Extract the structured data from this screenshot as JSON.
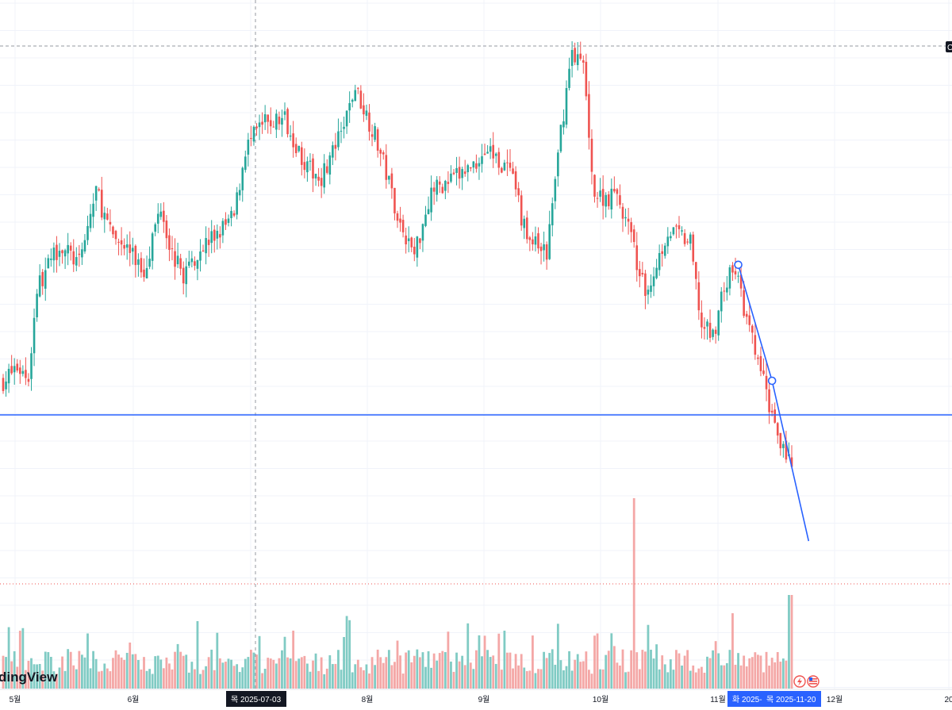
{
  "watermark": "dingView",
  "chart_data": {
    "type": "candlestick",
    "x_axis_labels": [
      {
        "label": "5월",
        "month_index": 0
      },
      {
        "label": "6월",
        "month_index": 1
      },
      {
        "label": "8월",
        "month_index": 3
      },
      {
        "label": "9월",
        "month_index": 4
      },
      {
        "label": "10월",
        "month_index": 5
      },
      {
        "label": "11월",
        "month_index": 6
      },
      {
        "label": "12월",
        "month_index": 7
      },
      {
        "label": "20",
        "month_index": 8
      }
    ],
    "crosshair_date": "목 2025-07-03",
    "range_tag": {
      "start": "화 2025-",
      "end": "목 2025-11-20"
    },
    "y_axis_marker": "C",
    "colors": {
      "up": "#26a69a",
      "down": "#ef5350",
      "vol_up": "#80cbc4",
      "vol_down": "#f4a7a6",
      "line": "#2962ff",
      "tag_bg": "#2962ff",
      "crosshair_tag_bg": "#131722"
    },
    "icons": [
      "lightning-icon",
      "us-flag-icon"
    ],
    "close_path": [
      {
        "t": 0,
        "c": 20
      },
      {
        "t": 5,
        "c": 24
      },
      {
        "t": 9,
        "c": 21
      },
      {
        "t": 12,
        "c": 47
      },
      {
        "t": 20,
        "c": 60
      },
      {
        "t": 27,
        "c": 54
      },
      {
        "t": 33,
        "c": 76
      },
      {
        "t": 38,
        "c": 63
      },
      {
        "t": 44,
        "c": 59
      },
      {
        "t": 50,
        "c": 52
      },
      {
        "t": 56,
        "c": 72
      },
      {
        "t": 60,
        "c": 57
      },
      {
        "t": 64,
        "c": 51
      },
      {
        "t": 70,
        "c": 59
      },
      {
        "t": 76,
        "c": 63
      },
      {
        "t": 82,
        "c": 68
      },
      {
        "t": 86,
        "c": 88
      },
      {
        "t": 92,
        "c": 95
      },
      {
        "t": 100,
        "c": 97
      },
      {
        "t": 108,
        "c": 82
      },
      {
        "t": 113,
        "c": 80
      },
      {
        "t": 120,
        "c": 92
      },
      {
        "t": 125,
        "c": 106
      },
      {
        "t": 132,
        "c": 92
      },
      {
        "t": 136,
        "c": 81
      },
      {
        "t": 141,
        "c": 66
      },
      {
        "t": 146,
        "c": 57
      },
      {
        "t": 152,
        "c": 76
      },
      {
        "t": 158,
        "c": 78
      },
      {
        "t": 165,
        "c": 82
      },
      {
        "t": 172,
        "c": 88
      },
      {
        "t": 180,
        "c": 81
      },
      {
        "t": 186,
        "c": 62
      },
      {
        "t": 193,
        "c": 57
      },
      {
        "t": 198,
        "c": 93
      },
      {
        "t": 202,
        "c": 117
      },
      {
        "t": 206,
        "c": 112
      },
      {
        "t": 210,
        "c": 74
      },
      {
        "t": 218,
        "c": 74
      },
      {
        "t": 222,
        "c": 65
      },
      {
        "t": 228,
        "c": 45
      },
      {
        "t": 236,
        "c": 64
      },
      {
        "t": 241,
        "c": 62
      },
      {
        "t": 244,
        "c": 60
      },
      {
        "t": 248,
        "c": 36
      },
      {
        "t": 252,
        "c": 33
      },
      {
        "t": 256,
        "c": 48
      },
      {
        "t": 260,
        "c": 53
      },
      {
        "t": 264,
        "c": 37
      },
      {
        "t": 268,
        "c": 26
      },
      {
        "t": 272,
        "c": 13
      },
      {
        "t": 276,
        "c": 3
      },
      {
        "t": 280,
        "c": -5
      }
    ],
    "horizontal_line_value": 10,
    "trend_line": [
      {
        "t": 261,
        "c": 54
      },
      {
        "t": 273,
        "c": 20
      },
      {
        "t": 286,
        "c": -27
      }
    ]
  }
}
